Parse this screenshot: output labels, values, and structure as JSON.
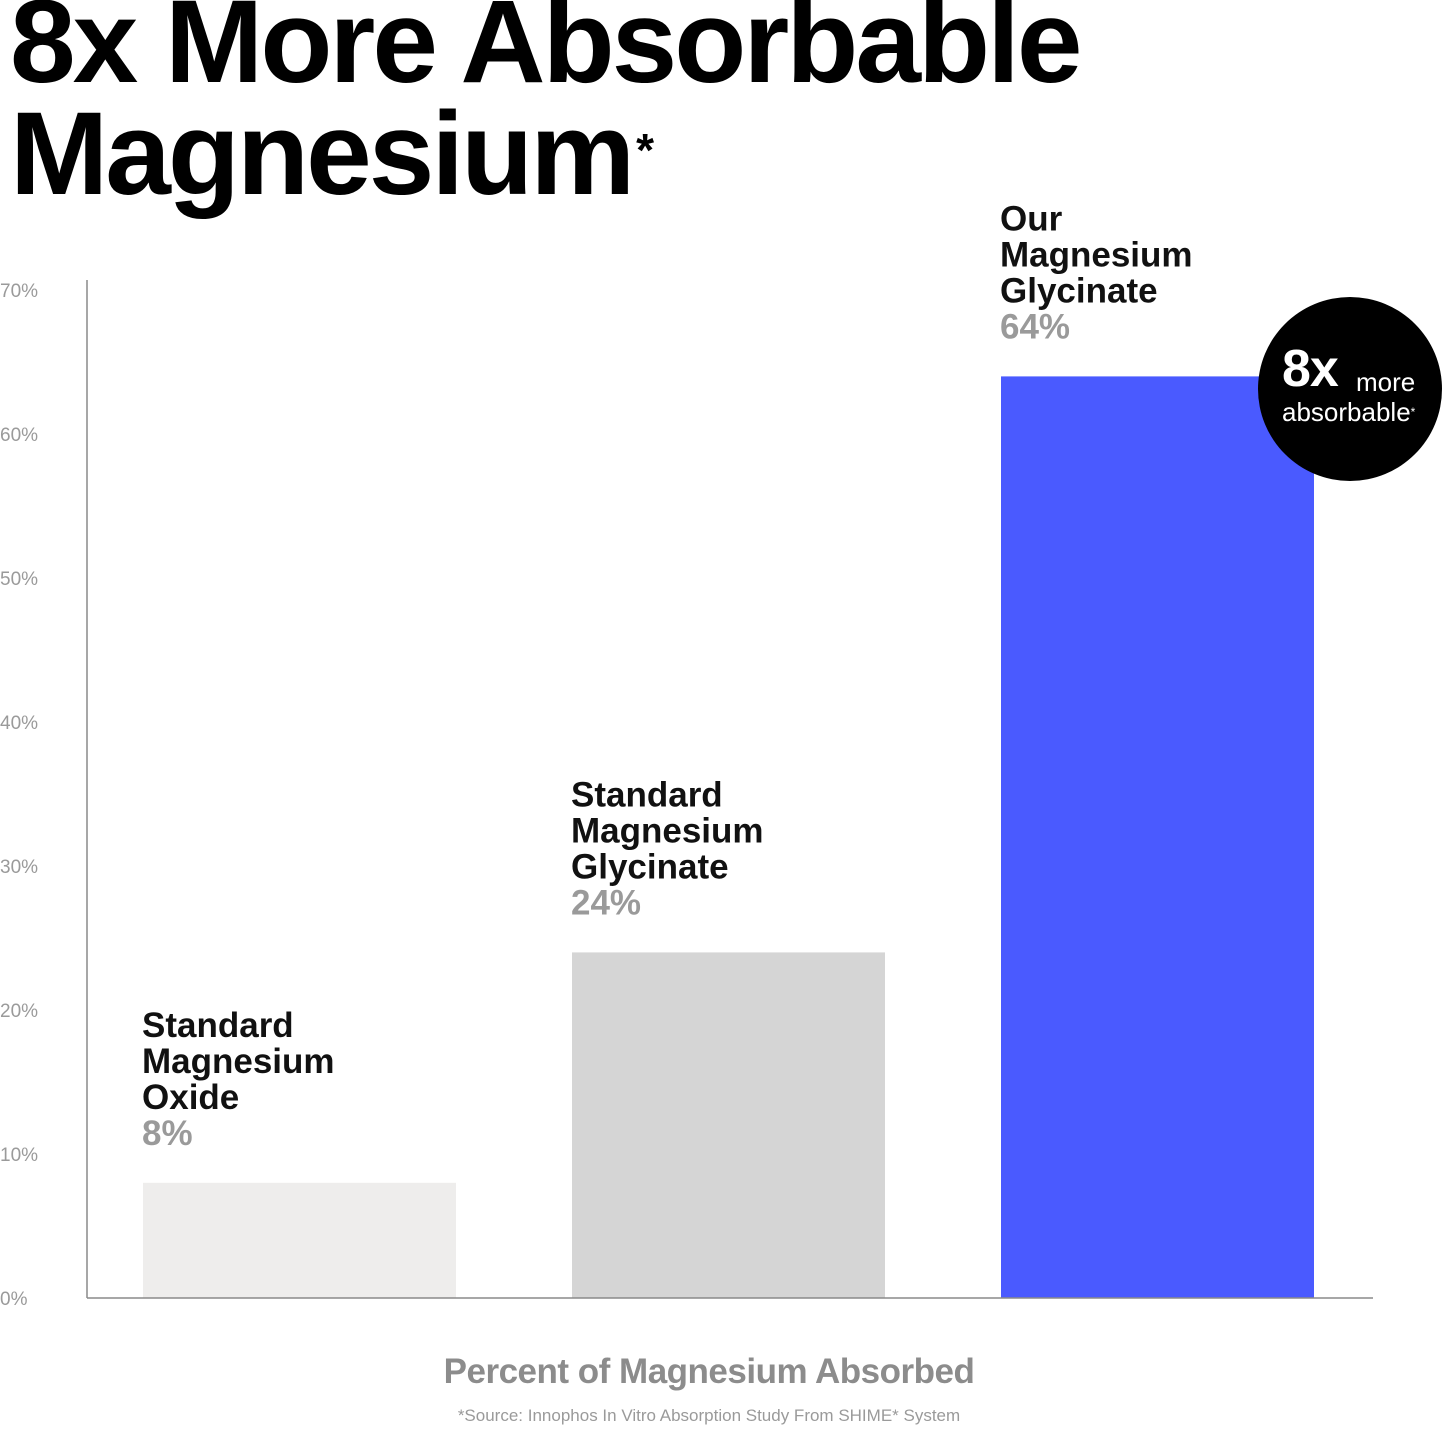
{
  "title": {
    "text": "8x More Absorbable Magnesium",
    "line1": "8x More Absorbable",
    "line2": "Magnesium",
    "asterisk": "*"
  },
  "badge": {
    "big": "8x",
    "more": "more",
    "absorbable": "absorbable",
    "asterisk": "*"
  },
  "chart_data": {
    "type": "bar",
    "categories": [
      "Standard Magnesium Oxide",
      "Standard Magnesium Glycinate",
      "Our Magnesium Glycinate"
    ],
    "category_lines": [
      [
        "Standard",
        "Magnesium",
        "Oxide"
      ],
      [
        "Standard",
        "Magnesium",
        "Glycinate"
      ],
      [
        "Our",
        "Magnesium",
        "Glycinate"
      ]
    ],
    "values": [
      8,
      24,
      64
    ],
    "value_labels": [
      "8%",
      "24%",
      "64%"
    ],
    "colors": [
      "#eeedec",
      "#d5d5d5",
      "#4a5aff"
    ],
    "title": "8x More Absorbable Magnesium",
    "xlabel": "Percent of Magnesium Absorbed",
    "ylabel": "",
    "ylim": [
      0,
      70
    ],
    "yticks": [
      0,
      10,
      20,
      30,
      40,
      50,
      60,
      70
    ],
    "ytick_labels": [
      "0%",
      "10%",
      "20%",
      "30%",
      "40%",
      "50%",
      "60%",
      "70%"
    ],
    "grid": false,
    "legend": "none"
  },
  "footnote": "*Source: Innophos In Vitro Absorption Study From SHIME* System"
}
